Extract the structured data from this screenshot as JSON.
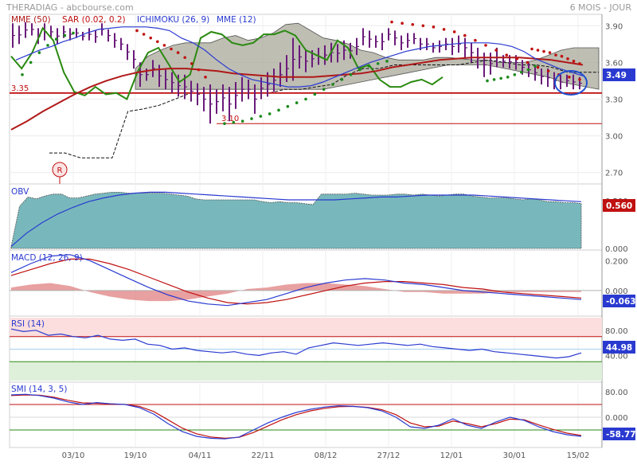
{
  "header": {
    "title": "THERADIAG - abcbourse.com",
    "period": "6 MOIS - JOUR"
  },
  "colors": {
    "price_bar": "#6a1b7a",
    "mme50": "#b01818",
    "mme12": "#2a3ad0",
    "chikou": "#2a8a10",
    "sar_up": "#1a8a1a",
    "sar_down": "#c01010",
    "cloud": "#a8a89a",
    "obv_fill": "#78b8bc",
    "support": "#c01010",
    "circle": "#2050d0"
  },
  "chart_data": [
    {
      "panel": "price",
      "type": "line",
      "legend": [
        "MME (50)",
        "SAR (0.02, 0.2)",
        "ICHIMOKU (26, 9)",
        "MME (12)"
      ],
      "y_ticks": [
        "3.90",
        "3.60",
        "3.30",
        "3.00",
        "2.70"
      ],
      "ylim": [
        2.62,
        3.98
      ],
      "x_ticks": [
        "03/10",
        "19/10",
        "04/11",
        "22/11",
        "08/12",
        "27/12",
        "12/01",
        "30/01",
        "15/02"
      ],
      "last_value": "3.49",
      "annotations": {
        "level_335": "3.35",
        "level_310": "3.10",
        "marker": "R"
      },
      "ohlc_bars": [
        [
          3.92,
          3.72
        ],
        [
          3.9,
          3.75
        ],
        [
          3.93,
          3.8
        ],
        [
          3.92,
          3.82
        ],
        [
          3.88,
          3.75
        ],
        [
          3.92,
          3.78
        ],
        [
          3.9,
          3.8
        ],
        [
          3.88,
          3.75
        ],
        [
          3.9,
          3.8
        ],
        [
          3.88,
          3.78
        ],
        [
          3.88,
          3.8
        ],
        [
          3.85,
          3.78
        ],
        [
          3.88,
          3.78
        ],
        [
          3.86,
          3.76
        ],
        [
          3.92,
          3.82
        ],
        [
          3.87,
          3.77
        ],
        [
          3.84,
          3.72
        ],
        [
          3.8,
          3.7
        ],
        [
          3.75,
          3.62
        ],
        [
          3.7,
          3.55
        ],
        [
          3.6,
          3.4
        ],
        [
          3.55,
          3.45
        ],
        [
          3.62,
          3.48
        ],
        [
          3.58,
          3.4
        ],
        [
          3.54,
          3.38
        ],
        [
          3.52,
          3.35
        ],
        [
          3.5,
          3.32
        ],
        [
          3.5,
          3.3
        ],
        [
          3.45,
          3.28
        ],
        [
          3.43,
          3.25
        ],
        [
          3.4,
          3.2
        ],
        [
          3.42,
          3.1
        ],
        [
          3.38,
          3.18
        ],
        [
          3.42,
          3.2
        ],
        [
          3.4,
          3.12
        ],
        [
          3.44,
          3.22
        ],
        [
          3.48,
          3.28
        ],
        [
          3.46,
          3.3
        ],
        [
          3.42,
          3.18
        ],
        [
          3.48,
          3.3
        ],
        [
          3.52,
          3.32
        ],
        [
          3.55,
          3.36
        ],
        [
          3.6,
          3.4
        ],
        [
          3.66,
          3.44
        ],
        [
          3.8,
          3.45
        ],
        [
          3.74,
          3.55
        ],
        [
          3.7,
          3.52
        ],
        [
          3.7,
          3.56
        ],
        [
          3.72,
          3.58
        ],
        [
          3.74,
          3.58
        ],
        [
          3.76,
          3.6
        ],
        [
          3.75,
          3.6
        ],
        [
          3.78,
          3.62
        ],
        [
          3.76,
          3.63
        ],
        [
          3.8,
          3.66
        ],
        [
          3.88,
          3.74
        ],
        [
          3.86,
          3.72
        ],
        [
          3.82,
          3.72
        ],
        [
          3.84,
          3.7
        ],
        [
          3.88,
          3.78
        ],
        [
          3.86,
          3.74
        ],
        [
          3.82,
          3.7
        ],
        [
          3.84,
          3.72
        ],
        [
          3.84,
          3.75
        ],
        [
          3.8,
          3.7
        ],
        [
          3.8,
          3.7
        ],
        [
          3.76,
          3.68
        ],
        [
          3.78,
          3.68
        ],
        [
          3.8,
          3.7
        ],
        [
          3.8,
          3.66
        ],
        [
          3.82,
          3.68
        ],
        [
          3.8,
          3.64
        ],
        [
          3.76,
          3.6
        ],
        [
          3.72,
          3.55
        ],
        [
          3.68,
          3.48
        ],
        [
          3.68,
          3.5
        ],
        [
          3.72,
          3.56
        ],
        [
          3.66,
          3.56
        ],
        [
          3.66,
          3.55
        ],
        [
          3.66,
          3.54
        ],
        [
          3.62,
          3.5
        ],
        [
          3.6,
          3.48
        ],
        [
          3.58,
          3.45
        ],
        [
          3.55,
          3.42
        ],
        [
          3.55,
          3.4
        ],
        [
          3.52,
          3.38
        ],
        [
          3.5,
          3.38
        ],
        [
          3.5,
          3.4
        ],
        [
          3.5,
          3.38
        ],
        [
          3.48,
          3.38
        ]
      ],
      "mme12": [
        3.62,
        3.66,
        3.7,
        3.73,
        3.77,
        3.8,
        3.84,
        3.87,
        3.88,
        3.89,
        3.89,
        3.89,
        3.88,
        3.86,
        3.8,
        3.76,
        3.7,
        3.62,
        3.55,
        3.5,
        3.46,
        3.44,
        3.42,
        3.4,
        3.4,
        3.41,
        3.44,
        3.48,
        3.52,
        3.56,
        3.6,
        3.63,
        3.66,
        3.69,
        3.71,
        3.73,
        3.74,
        3.75,
        3.76,
        3.76,
        3.76,
        3.75,
        3.73,
        3.69,
        3.63,
        3.59,
        3.55,
        3.52,
        3.49
      ],
      "mme50": [
        3.05,
        3.12,
        3.2,
        3.27,
        3.34,
        3.4,
        3.45,
        3.49,
        3.52,
        3.54,
        3.55,
        3.55,
        3.54,
        3.53,
        3.51,
        3.5,
        3.49,
        3.48,
        3.48,
        3.48,
        3.49,
        3.5,
        3.51,
        3.53,
        3.56,
        3.58,
        3.6,
        3.62,
        3.63,
        3.64,
        3.64,
        3.64,
        3.64,
        3.63,
        3.62,
        3.6,
        3.58
      ],
      "chikou": [
        3.65,
        3.55,
        3.68,
        3.88,
        3.78,
        3.52,
        3.36,
        3.33,
        3.4,
        3.34,
        3.35,
        3.3,
        3.52,
        3.68,
        3.72,
        3.58,
        3.44,
        3.5,
        3.8,
        3.85,
        3.83,
        3.76,
        3.74,
        3.76,
        3.83,
        3.83,
        3.86,
        3.82,
        3.7,
        3.66,
        3.62,
        3.78,
        3.72,
        3.55,
        3.58,
        3.46,
        3.4,
        3.4,
        3.44,
        3.46,
        3.42,
        3.48
      ],
      "kijun": [
        2.86,
        2.86,
        2.82,
        2.82,
        2.82,
        3.2,
        3.22,
        3.25,
        3.3,
        3.35,
        3.35,
        3.35,
        3.35,
        3.35,
        3.35,
        3.38,
        3.38,
        3.4,
        3.42,
        3.5,
        3.55,
        3.55,
        3.58,
        3.58,
        3.58,
        3.58,
        3.58,
        3.6,
        3.62,
        3.6,
        3.58,
        3.58,
        3.56,
        3.52,
        3.52,
        3.52
      ],
      "cloud_upper": [
        3.55,
        3.65,
        3.7,
        3.74,
        3.76,
        3.76,
        3.76,
        3.8,
        3.82,
        3.78,
        3.8,
        3.84,
        3.91,
        3.92,
        3.86,
        3.8,
        3.78,
        3.75,
        3.7,
        3.68,
        3.64,
        3.62,
        3.62,
        3.62,
        3.64,
        3.64,
        3.63,
        3.62,
        3.62,
        3.6,
        3.6,
        3.6,
        3.62,
        3.66,
        3.7,
        3.72,
        3.72,
        3.72
      ],
      "cloud_lower": [
        3.38,
        3.38,
        3.38,
        3.38,
        3.38,
        3.38,
        3.38,
        3.38,
        3.38,
        3.38,
        3.38,
        3.38,
        3.38,
        3.38,
        3.38,
        3.38,
        3.4,
        3.42,
        3.44,
        3.46,
        3.48,
        3.5,
        3.52,
        3.54,
        3.56,
        3.58,
        3.58,
        3.58,
        3.58,
        3.56,
        3.54,
        3.52,
        3.5,
        3.48,
        3.44,
        3.42,
        3.4,
        3.38
      ],
      "sar": [
        {
          "trend": "up",
          "values": [
            3.5,
            3.6,
            3.68,
            3.74,
            3.79,
            3.82,
            3.84
          ]
        },
        {
          "trend": "down",
          "values": [
            3.86,
            3.83,
            3.8,
            3.77,
            3.74,
            3.71,
            3.68,
            3.64,
            3.59,
            3.54,
            3.48
          ]
        },
        {
          "trend": "up",
          "values": [
            3.1,
            3.11,
            3.12,
            3.14,
            3.16,
            3.18,
            3.21,
            3.24,
            3.27,
            3.3,
            3.34,
            3.38,
            3.42,
            3.46,
            3.5,
            3.54,
            3.57,
            3.59,
            3.61
          ]
        },
        {
          "trend": "down",
          "values": [
            3.93,
            3.92,
            3.91,
            3.9,
            3.89,
            3.87,
            3.85,
            3.82,
            3.78,
            3.74,
            3.7,
            3.66,
            3.63,
            3.6,
            3.56,
            3.53,
            3.5,
            3.48,
            3.46
          ]
        },
        {
          "trend": "up",
          "values": [
            3.45,
            3.46,
            3.47,
            3.48,
            3.5,
            3.52,
            3.54,
            3.57
          ]
        },
        {
          "trend": "down",
          "values": [
            3.71,
            3.7,
            3.69,
            3.68,
            3.66,
            3.65,
            3.63,
            3.61,
            3.59
          ]
        }
      ],
      "support_lines": [
        3.35,
        3.1
      ]
    },
    {
      "panel": "obv",
      "type": "area",
      "legend": [
        "OBV"
      ],
      "y_ticks": [
        "0.500",
        "0.000"
      ],
      "ylim": [
        0.0,
        0.66
      ],
      "last_value": "0.560",
      "obv": [
        0.02,
        0.44,
        0.54,
        0.52,
        0.55,
        0.57,
        0.57,
        0.53,
        0.53,
        0.55,
        0.57,
        0.58,
        0.59,
        0.59,
        0.58,
        0.58,
        0.58,
        0.58,
        0.58,
        0.57,
        0.56,
        0.55,
        0.52,
        0.51,
        0.51,
        0.51,
        0.51,
        0.51,
        0.51,
        0.51,
        0.49,
        0.48,
        0.49,
        0.48,
        0.48,
        0.47,
        0.46,
        0.57,
        0.57,
        0.57,
        0.57,
        0.58,
        0.57,
        0.56,
        0.56,
        0.56,
        0.57,
        0.57,
        0.56,
        0.57,
        0.56,
        0.55,
        0.56,
        0.57,
        0.57,
        0.55,
        0.54,
        0.53,
        0.53,
        0.53,
        0.52,
        0.51,
        0.52,
        0.51,
        0.49,
        0.49,
        0.48,
        0.48,
        0.47
      ],
      "obv_ma": [
        0.02,
        0.16,
        0.27,
        0.36,
        0.43,
        0.49,
        0.53,
        0.56,
        0.58,
        0.59,
        0.59,
        0.58,
        0.57,
        0.56,
        0.55,
        0.54,
        0.53,
        0.52,
        0.51,
        0.51,
        0.51,
        0.51,
        0.52,
        0.53,
        0.54,
        0.54,
        0.55,
        0.56,
        0.56,
        0.56,
        0.56,
        0.55,
        0.54,
        0.53,
        0.52,
        0.51,
        0.5,
        0.49
      ]
    },
    {
      "panel": "macd",
      "type": "line",
      "legend": [
        "MACD (12, 26, 9)"
      ],
      "y_ticks": [
        "0.200",
        "0.000"
      ],
      "ylim": [
        -0.16,
        0.26
      ],
      "last_value": "-0.063",
      "macd": [
        0.12,
        0.18,
        0.23,
        0.24,
        0.2,
        0.14,
        0.08,
        0.02,
        -0.03,
        -0.07,
        -0.09,
        -0.1,
        -0.08,
        -0.06,
        -0.02,
        0.02,
        0.05,
        0.07,
        0.08,
        0.07,
        0.05,
        0.04,
        0.02,
        0.0,
        -0.01,
        -0.02,
        -0.03,
        -0.04,
        -0.05,
        -0.06
      ],
      "signal": [
        0.1,
        0.14,
        0.18,
        0.21,
        0.21,
        0.18,
        0.14,
        0.09,
        0.04,
        -0.01,
        -0.05,
        -0.08,
        -0.09,
        -0.08,
        -0.06,
        -0.03,
        0.0,
        0.03,
        0.05,
        0.06,
        0.06,
        0.05,
        0.04,
        0.02,
        0.01,
        -0.01,
        -0.02,
        -0.03,
        -0.04,
        -0.05
      ]
    },
    {
      "panel": "rsi",
      "type": "line",
      "legend": [
        "RSI (14)"
      ],
      "y_ticks": [
        "80.00",
        "40.00"
      ],
      "ylim": [
        0,
        100
      ],
      "zones": [
        70,
        30
      ],
      "last_value": "44.98",
      "rsi": [
        82,
        78,
        80,
        72,
        74,
        70,
        68,
        72,
        66,
        64,
        66,
        58,
        56,
        50,
        52,
        48,
        46,
        44,
        46,
        42,
        40,
        44,
        46,
        42,
        52,
        56,
        60,
        58,
        56,
        58,
        60,
        58,
        56,
        58,
        54,
        52,
        50,
        48,
        50,
        46,
        44,
        42,
        40,
        38,
        36,
        38,
        44
      ]
    },
    {
      "panel": "smi",
      "type": "line",
      "legend": [
        "SMI (14, 3, 5)"
      ],
      "y_ticks": [
        "80.00",
        "0.000"
      ],
      "ylim": [
        -90,
        105
      ],
      "zones": [
        40,
        -40
      ],
      "last_value": "-58.77",
      "smi": [
        70,
        72,
        68,
        60,
        48,
        40,
        46,
        42,
        40,
        30,
        10,
        -20,
        -45,
        -60,
        -66,
        -68,
        -62,
        -40,
        -18,
        0,
        15,
        25,
        32,
        36,
        34,
        30,
        20,
        0,
        -30,
        -35,
        -25,
        -5,
        -25,
        -35,
        -15,
        0,
        -10,
        -30,
        -45,
        -55,
        -60
      ],
      "smi_signal": [
        68,
        70,
        69,
        63,
        53,
        45,
        44,
        42,
        40,
        34,
        18,
        -8,
        -34,
        -52,
        -62,
        -66,
        -63,
        -48,
        -28,
        -8,
        8,
        20,
        28,
        33,
        34,
        31,
        24,
        8,
        -18,
        -30,
        -28,
        -12,
        -20,
        -30,
        -20,
        -6,
        -8,
        -24,
        -38,
        -50,
        -57
      ]
    }
  ]
}
